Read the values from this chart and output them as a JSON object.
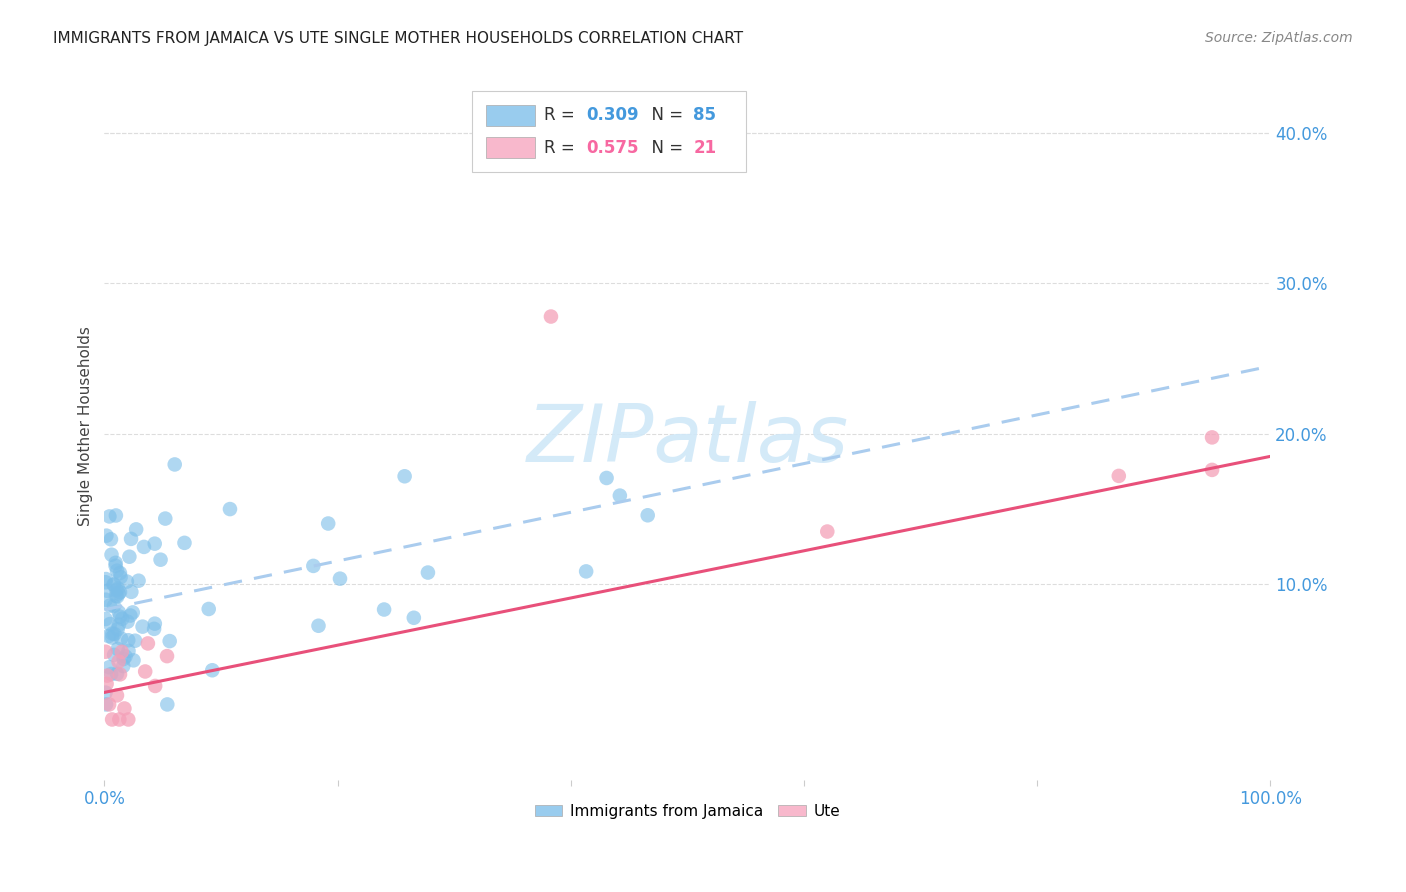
{
  "title": "IMMIGRANTS FROM JAMAICA VS UTE SINGLE MOTHER HOUSEHOLDS CORRELATION CHART",
  "source": "Source: ZipAtlas.com",
  "ylabel_label": "Single Mother Households",
  "xlim": [
    0.0,
    1.0
  ],
  "ylim": [
    -0.03,
    0.44
  ],
  "blue_R": 0.309,
  "blue_N": 85,
  "pink_R": 0.575,
  "pink_N": 21,
  "blue_scatter_color": "#7bbde8",
  "pink_scatter_color": "#f4a0b8",
  "blue_line_color": "#2255aa",
  "pink_line_color": "#e8507a",
  "blue_dash_color": "#aaccee",
  "watermark_color": "#d0e8f8",
  "background_color": "#ffffff",
  "grid_color": "#dddddd",
  "title_color": "#222222",
  "axis_color": "#4499dd",
  "legend_color_blue": "#99ccee",
  "legend_color_pink": "#f8b8cc",
  "blue_trend_x0": 0.0,
  "blue_trend_y0": 0.083,
  "blue_trend_x1": 1.0,
  "blue_trend_y1": 0.245,
  "pink_trend_x0": 0.0,
  "pink_trend_y0": 0.028,
  "pink_trend_x1": 1.0,
  "pink_trend_y1": 0.185
}
